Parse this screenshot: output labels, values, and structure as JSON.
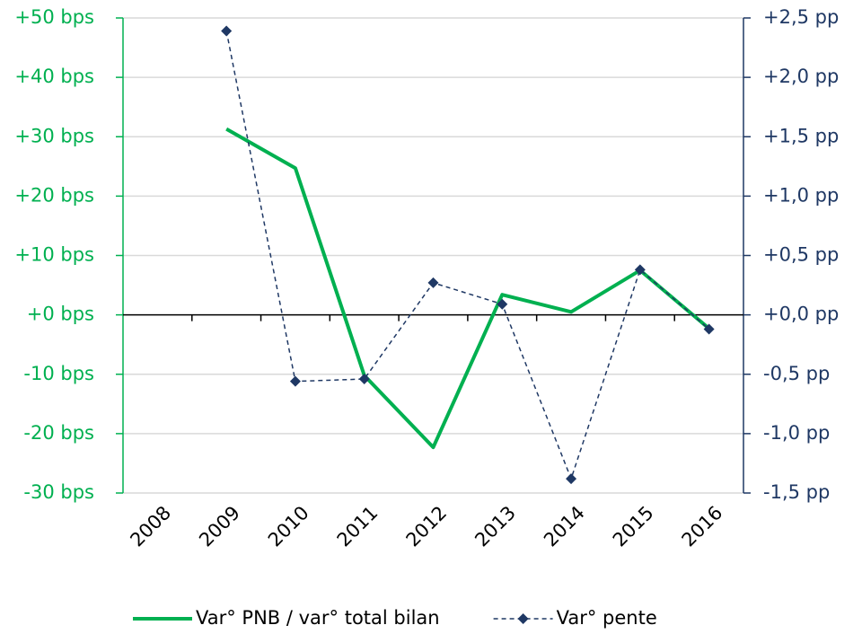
{
  "chart_data": {
    "type": "line",
    "categories": [
      "2008",
      "2009",
      "2010",
      "2011",
      "2012",
      "2013",
      "2014",
      "2015",
      "2016"
    ],
    "series": [
      {
        "name": "Var° PNB / var° total bilan",
        "color": "#00b050",
        "line_style": "solid",
        "axis": "y",
        "values": [
          null,
          31.3,
          24.7,
          -10.2,
          -22.3,
          3.4,
          0.5,
          7.5,
          -2.3
        ]
      },
      {
        "name": "Var° pente",
        "color": "#1f3864",
        "line_style": "dashed",
        "marker": "diamond",
        "axis": "y2",
        "values": [
          null,
          2.39,
          -0.56,
          -0.54,
          0.27,
          0.09,
          -1.38,
          0.38,
          -0.12
        ]
      }
    ],
    "ylim": [
      -30,
      50
    ],
    "yticks": [
      {
        "value": -30,
        "label": "-30 bps"
      },
      {
        "value": -20,
        "label": "-20 bps"
      },
      {
        "value": -10,
        "label": "-10 bps"
      },
      {
        "value": 0,
        "label": "+0 bps"
      },
      {
        "value": 10,
        "label": "+10 bps"
      },
      {
        "value": 20,
        "label": "+20 bps"
      },
      {
        "value": 30,
        "label": "+30 bps"
      },
      {
        "value": 40,
        "label": "+40 bps"
      },
      {
        "value": 50,
        "label": "+50 bps"
      }
    ],
    "y_color": "#00b050",
    "y2lim": [
      -1.5,
      2.5
    ],
    "y2ticks": [
      {
        "value": -1.5,
        "label": "-1,5 pp"
      },
      {
        "value": -1.0,
        "label": "-1,0 pp"
      },
      {
        "value": -0.5,
        "label": "-0,5 pp"
      },
      {
        "value": 0,
        "label": "+0,0 pp"
      },
      {
        "value": 0.5,
        "label": "+0,5 pp"
      },
      {
        "value": 1.0,
        "label": "+1,0 pp"
      },
      {
        "value": 1.5,
        "label": "+1,5 pp"
      },
      {
        "value": 2.0,
        "label": "+2,0 pp"
      },
      {
        "value": 2.5,
        "label": "+2,5 pp"
      }
    ],
    "y2_color": "#1f3864",
    "grid": true,
    "legend": "bottom"
  }
}
